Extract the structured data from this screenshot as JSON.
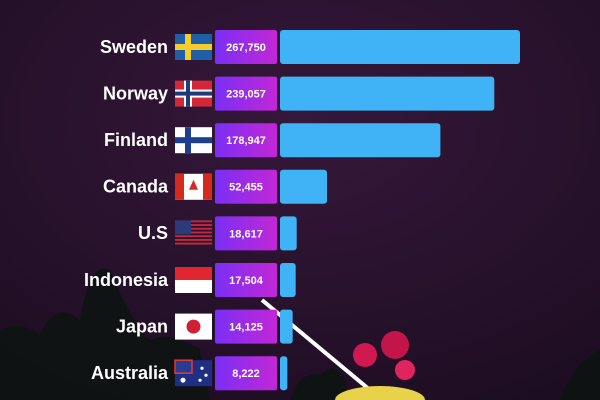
{
  "chart_data": {
    "type": "bar",
    "orientation": "horizontal",
    "categories": [
      "Sweden",
      "Norway",
      "Finland",
      "Canada",
      "U.S",
      "Indonesia",
      "Japan",
      "Australia"
    ],
    "values": [
      267750,
      239057,
      178947,
      52455,
      18617,
      17504,
      14125,
      8222
    ],
    "value_labels": [
      "267,750",
      "239,057",
      "178,947",
      "52,455",
      "18,617",
      "17,504",
      "14,125",
      "8,222"
    ],
    "color": "#3fb3f6",
    "label_box_colors": [
      "#7a2ff5",
      "#c227d6"
    ]
  }
}
